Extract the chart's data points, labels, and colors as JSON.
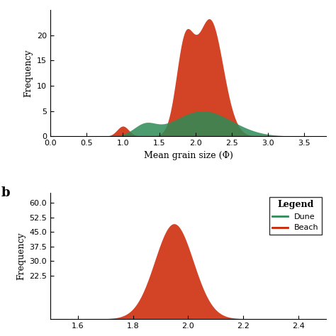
{
  "top_panel": {
    "ylabel": "Frequency",
    "xlabel": "Mean grain size (Φ)",
    "xlim": [
      0.0,
      3.8
    ],
    "ylim": [
      0,
      25
    ],
    "yticks": [
      0,
      5,
      10,
      15,
      20
    ],
    "xticks": [
      0.0,
      0.5,
      1.0,
      1.5,
      2.0,
      2.5,
      3.0,
      3.5
    ],
    "dune_color": "#2e8b57",
    "beach_color": "#cc2200",
    "dune_alpha": 0.85,
    "beach_alpha": 0.85
  },
  "bottom_panel": {
    "panel_label": "b",
    "ylabel": "Frequency",
    "xlim": [
      1.5,
      2.5
    ],
    "ylim": [
      0,
      65
    ],
    "yticks": [
      22.5,
      30.0,
      37.5,
      45.0,
      52.5,
      60.0
    ],
    "beach_color": "#cc2200",
    "beach_alpha": 0.85,
    "legend_title": "Legend",
    "legend_dune_color": "#2e8b57",
    "legend_beach_color": "#cc2200",
    "legend_dune_label": "Dune",
    "legend_beach_label": "Beach"
  }
}
